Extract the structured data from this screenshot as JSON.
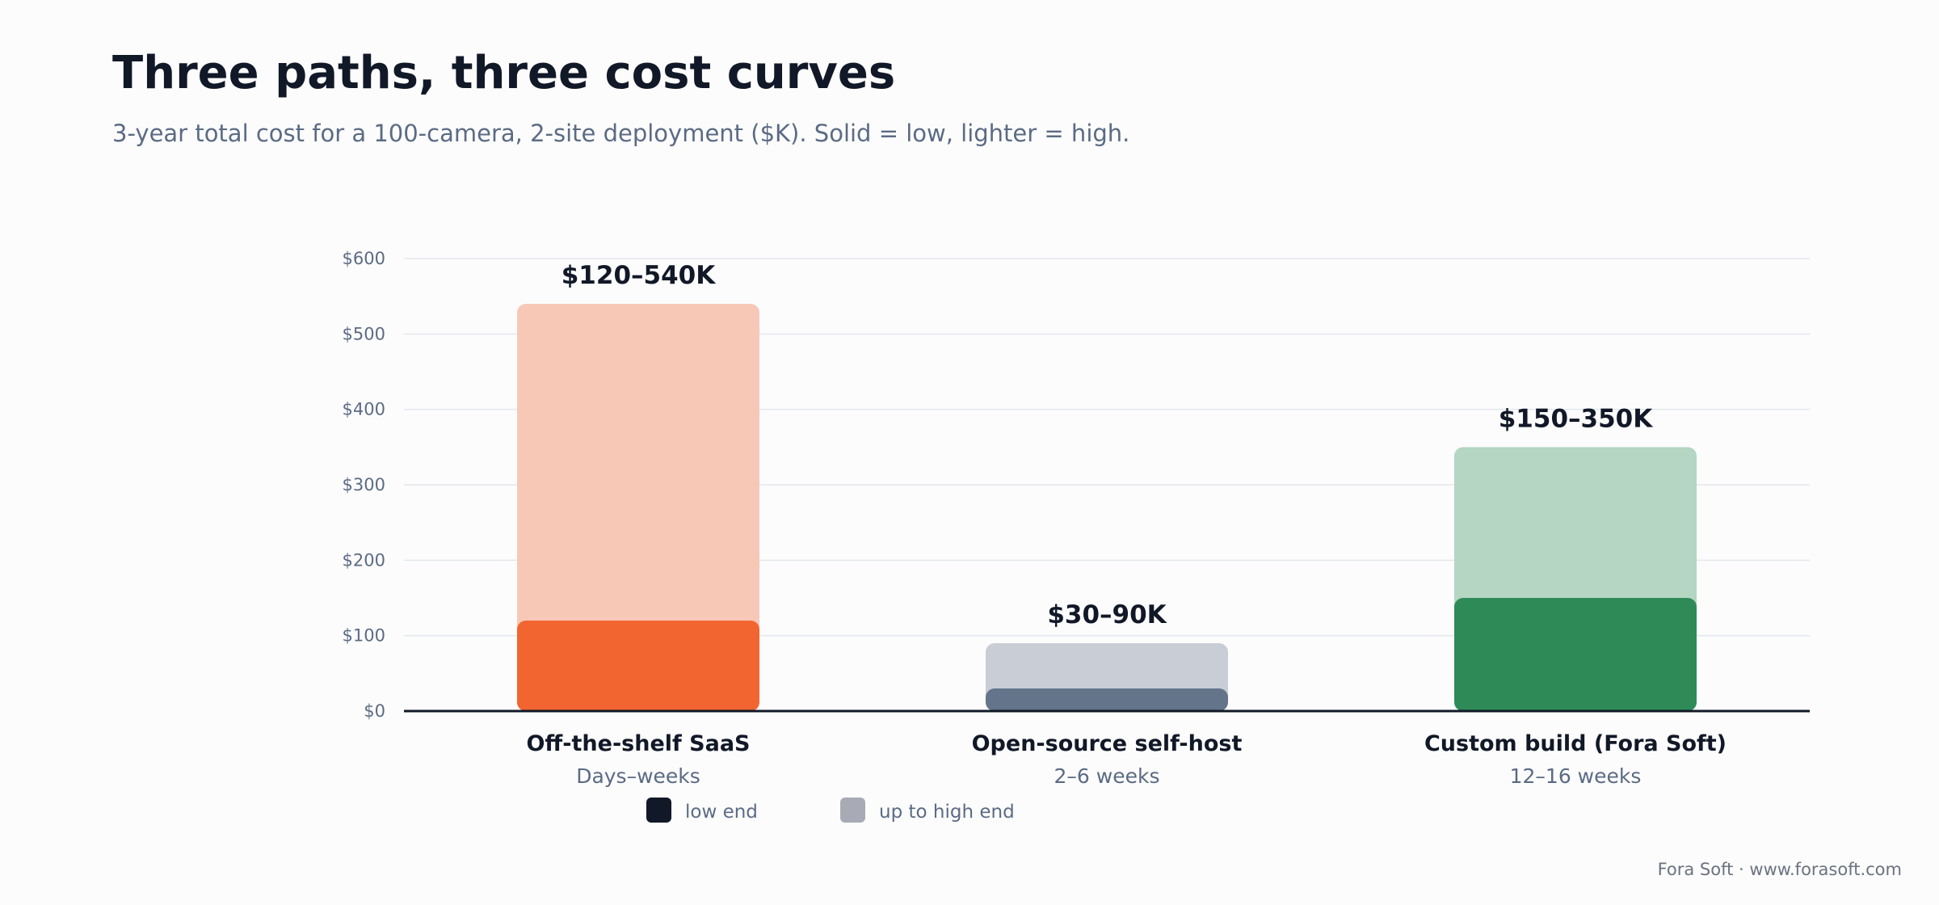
{
  "title": "Three paths, three cost curves",
  "subtitle": "3-year total cost for a 100-camera, 2-site deployment ($K). Solid = low, lighter = high.",
  "footer": "Fora Soft · www.forasoft.com",
  "chart_data": {
    "type": "bar",
    "stacked_range": true,
    "categories": [
      "Off-the-shelf SaaS",
      "Open-source self-host",
      "Custom build (Fora Soft)"
    ],
    "subcategories": [
      "Days–weeks",
      "2–6 weeks",
      "12–16 weeks"
    ],
    "series": [
      {
        "name": "low end",
        "values": [
          120,
          30,
          150
        ]
      },
      {
        "name": "up to high end",
        "values": [
          540,
          90,
          350
        ]
      }
    ],
    "data_labels": [
      "$120–540K",
      "$30–90K",
      "$150–350K"
    ],
    "ylim": [
      0,
      600
    ],
    "yticks": [
      0,
      100,
      200,
      300,
      400,
      500,
      600
    ],
    "ytick_labels": [
      "$0",
      "$100",
      "$200",
      "$300",
      "$400",
      "$500",
      "$600"
    ],
    "grid": true,
    "legend": {
      "position": "bottom",
      "entries": [
        {
          "label": "low end",
          "color": "#111827"
        },
        {
          "label": "up to high end",
          "color": "#a8aab5"
        }
      ]
    },
    "colors": {
      "low": [
        "#f26531",
        "#64748b",
        "#2e8b57"
      ],
      "high": [
        "#f7c8b6",
        "#c8cdd6",
        "#b4d6c2"
      ]
    }
  }
}
